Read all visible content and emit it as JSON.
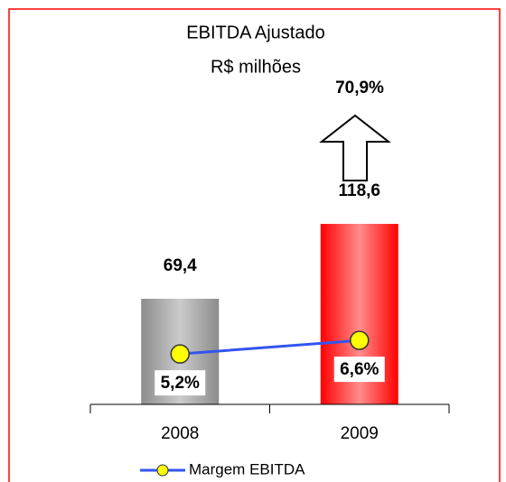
{
  "chart_data": {
    "type": "bar+line",
    "title": "EBITDA  Ajustado",
    "subtitle": "R$ milhões",
    "annotation": "70,9%",
    "categories": [
      "2008",
      "2009"
    ],
    "series": [
      {
        "name": "EBITDA Ajustado",
        "type": "bar",
        "colors": [
          "#8c8c8c",
          "#ff0000"
        ],
        "values": [
          69.4,
          118.6
        ],
        "value_labels": [
          "69,4",
          "118,6"
        ]
      },
      {
        "name": "Margem EBITDA",
        "type": "line",
        "axis": "y2",
        "color": "#3355ee",
        "marker_color": "#ffff00",
        "values": [
          5.2,
          6.6
        ],
        "value_labels": [
          "5,2%",
          "6,6%"
        ]
      }
    ],
    "ylim": [
      0,
      242
    ],
    "y2lim": [
      0,
      38
    ],
    "legend": "bottom"
  }
}
